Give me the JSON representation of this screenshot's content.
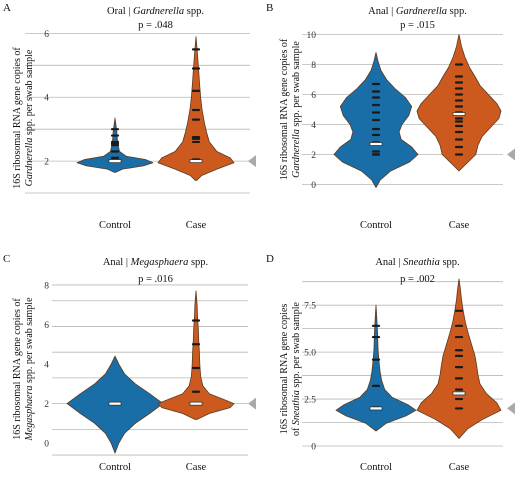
{
  "colors": {
    "control": "#1a6ea8",
    "case": "#cc5a1f",
    "outline": "#5a3a20",
    "marker": "#a9a9a9",
    "points": "#1a1a1a"
  },
  "chart_data": [
    {
      "type": "violin",
      "panel": "A",
      "title_prefix": "Oral | ",
      "title_italic": "Gardnerella",
      "title_suffix": " spp.",
      "pvalue": "p = .048",
      "ylabel_line1": "16S ribosomal RNA gene copies of",
      "ylabel_line2_italic": "Gardnerella",
      "ylabel_line2_rest": " spp. per swab sample",
      "categories": [
        "Control",
        "Case"
      ],
      "ylim": [
        0.5,
        6.2
      ],
      "yticks": [
        "2",
        "4",
        "6"
      ],
      "ytick_values": [
        2,
        4,
        6
      ],
      "gridlines": [
        1,
        2,
        3,
        4,
        5,
        6
      ],
      "reference_marker_y": 2,
      "groups": [
        {
          "name": "Control",
          "y_range": [
            1.65,
            3.35
          ],
          "max_halfwidth": 38,
          "density": [
            [
              1.65,
              0.02
            ],
            [
              1.75,
              0.2
            ],
            [
              1.85,
              0.75
            ],
            [
              1.95,
              1.0
            ],
            [
              2.05,
              0.8
            ],
            [
              2.15,
              0.3
            ],
            [
              2.3,
              0.12
            ],
            [
              2.5,
              0.08
            ],
            [
              2.7,
              0.06
            ],
            [
              2.9,
              0.05
            ],
            [
              3.1,
              0.03
            ],
            [
              3.35,
              0.0
            ]
          ],
          "median": 2.0,
          "points": [
            2.0,
            2.1,
            2.3,
            2.5,
            2.55,
            2.6,
            2.8,
            3.0
          ]
        },
        {
          "name": "Case",
          "y_range": [
            1.4,
            5.9
          ],
          "max_halfwidth": 38,
          "density": [
            [
              1.4,
              0.02
            ],
            [
              1.55,
              0.15
            ],
            [
              1.75,
              0.55
            ],
            [
              1.95,
              1.0
            ],
            [
              2.1,
              0.9
            ],
            [
              2.3,
              0.55
            ],
            [
              2.6,
              0.35
            ],
            [
              2.9,
              0.28
            ],
            [
              3.2,
              0.22
            ],
            [
              3.6,
              0.16
            ],
            [
              4.0,
              0.12
            ],
            [
              4.5,
              0.09
            ],
            [
              5.0,
              0.06
            ],
            [
              5.5,
              0.03
            ],
            [
              5.9,
              0.0
            ]
          ],
          "median": 2.0,
          "points": [
            2.0,
            2.05,
            2.6,
            2.7,
            2.75,
            3.3,
            3.6,
            4.2,
            4.9,
            5.5
          ]
        }
      ]
    },
    {
      "type": "violin",
      "panel": "B",
      "title_prefix": "Anal | ",
      "title_italic": "Gardnerella",
      "title_suffix": " spp.",
      "pvalue": "p = .015",
      "ylabel_line1": "16S ribosomal RNA gene copies of",
      "ylabel_line2_italic": "Gardnerella",
      "ylabel_line2_rest": " spp. per swab sample",
      "categories": [
        "Control",
        "Case"
      ],
      "ylim": [
        -0.5,
        10.5
      ],
      "yticks": [
        "0",
        "2",
        "4",
        "6",
        "8",
        "10"
      ],
      "ytick_values": [
        0,
        2,
        4,
        6,
        8,
        10
      ],
      "gridlines": [
        0,
        2,
        4,
        6,
        8,
        10
      ],
      "reference_marker_y": 2,
      "groups": [
        {
          "name": "Control",
          "y_range": [
            -0.2,
            8.8
          ],
          "max_halfwidth": 42,
          "density": [
            [
              -0.2,
              0.0
            ],
            [
              0.3,
              0.1
            ],
            [
              0.9,
              0.35
            ],
            [
              1.5,
              0.8
            ],
            [
              2.0,
              1.0
            ],
            [
              2.5,
              0.85
            ],
            [
              3.0,
              0.6
            ],
            [
              3.5,
              0.55
            ],
            [
              4.0,
              0.62
            ],
            [
              4.6,
              0.78
            ],
            [
              5.2,
              0.85
            ],
            [
              5.8,
              0.7
            ],
            [
              6.4,
              0.45
            ],
            [
              7.0,
              0.25
            ],
            [
              7.6,
              0.12
            ],
            [
              8.2,
              0.05
            ],
            [
              8.8,
              0.0
            ]
          ],
          "median": 2.7,
          "points": [
            2.0,
            2.0,
            2.2,
            2.8,
            3.3,
            3.7,
            4.3,
            4.8,
            5.3,
            5.8,
            6.2,
            6.7
          ]
        },
        {
          "name": "Case",
          "y_range": [
            0.9,
            10.0
          ],
          "max_halfwidth": 42,
          "density": [
            [
              0.9,
              0.0
            ],
            [
              1.4,
              0.18
            ],
            [
              2.0,
              0.4
            ],
            [
              2.6,
              0.45
            ],
            [
              3.2,
              0.55
            ],
            [
              3.8,
              0.75
            ],
            [
              4.4,
              0.95
            ],
            [
              4.9,
              1.0
            ],
            [
              5.4,
              0.9
            ],
            [
              6.0,
              0.7
            ],
            [
              6.6,
              0.5
            ],
            [
              7.2,
              0.38
            ],
            [
              7.8,
              0.25
            ],
            [
              8.5,
              0.14
            ],
            [
              9.2,
              0.06
            ],
            [
              10.0,
              0.0
            ]
          ],
          "median": 4.7,
          "points": [
            2.0,
            2.5,
            3.0,
            3.5,
            3.9,
            4.2,
            4.4,
            4.8,
            5.2,
            5.6,
            6.0,
            6.4,
            6.8,
            7.2,
            8.0
          ]
        }
      ]
    },
    {
      "type": "violin",
      "panel": "C",
      "title_prefix": "Anal | ",
      "title_italic": "Megasphaera",
      "title_suffix": " spp.",
      "pvalue": "p = .016",
      "ylabel_line1": "16S ribosomal RNA gene copies of",
      "ylabel_line2_italic": "Megasphaera",
      "ylabel_line2_rest": " spp. per swab sample",
      "categories": [
        "Control",
        "Case"
      ],
      "ylim": [
        -0.9,
        8.4
      ],
      "yticks": [
        "0",
        "2",
        "4",
        "6",
        "8"
      ],
      "ytick_values": [
        0,
        2,
        4,
        6,
        8
      ],
      "gridlines": [
        -0.6,
        0.7,
        2,
        3.3,
        4.6,
        5.9,
        7.2,
        8
      ],
      "reference_marker_y": 2,
      "groups": [
        {
          "name": "Control",
          "y_range": [
            -0.5,
            4.4
          ],
          "max_halfwidth": 48,
          "density": [
            [
              -0.5,
              0.0
            ],
            [
              0.0,
              0.08
            ],
            [
              0.5,
              0.2
            ],
            [
              1.0,
              0.42
            ],
            [
              1.5,
              0.72
            ],
            [
              2.0,
              1.0
            ],
            [
              2.5,
              0.72
            ],
            [
              3.0,
              0.42
            ],
            [
              3.5,
              0.2
            ],
            [
              4.0,
              0.08
            ],
            [
              4.4,
              0.0
            ]
          ],
          "median": 2.0,
          "points": [
            2.0,
            2.0
          ]
        },
        {
          "name": "Case",
          "y_range": [
            1.2,
            7.7
          ],
          "max_halfwidth": 38,
          "density": [
            [
              1.2,
              0.02
            ],
            [
              1.5,
              0.35
            ],
            [
              1.8,
              0.9
            ],
            [
              2.0,
              1.0
            ],
            [
              2.2,
              0.75
            ],
            [
              2.5,
              0.35
            ],
            [
              2.9,
              0.18
            ],
            [
              3.4,
              0.12
            ],
            [
              4.0,
              0.1
            ],
            [
              4.6,
              0.09
            ],
            [
              5.2,
              0.07
            ],
            [
              5.8,
              0.06
            ],
            [
              6.4,
              0.04
            ],
            [
              7.0,
              0.03
            ],
            [
              7.7,
              0.0
            ]
          ],
          "median": 2.0,
          "points": [
            2.0,
            2.6,
            3.8,
            5.0,
            6.2
          ]
        }
      ]
    },
    {
      "type": "violin",
      "panel": "D",
      "title_prefix": "Anal | ",
      "title_italic": "Sneathia",
      "title_suffix": " spp.",
      "pvalue": "p = .002",
      "ylabel_line1": "16S ribosomal RNA gene copies",
      "ylabel_line2_prefix": "of ",
      "ylabel_line2_italic": "Sneathia",
      "ylabel_line2_rest": " spp. per swab sample",
      "categories": [
        "Control",
        "Case"
      ],
      "ylim": [
        -0.8,
        9.0
      ],
      "yticks": [
        "0",
        "2.5",
        "5.0",
        "7.5"
      ],
      "ytick_values": [
        0,
        2.5,
        5.0,
        7.5
      ],
      "gridlines": [
        0,
        1.25,
        2.5,
        3.75,
        5.0,
        6.25,
        7.5,
        8.75
      ],
      "reference_marker_y": 2,
      "groups": [
        {
          "name": "Control",
          "y_range": [
            0.8,
            7.5
          ],
          "max_halfwidth": 40,
          "density": [
            [
              0.8,
              0.0
            ],
            [
              1.2,
              0.25
            ],
            [
              1.6,
              0.75
            ],
            [
              1.9,
              1.0
            ],
            [
              2.2,
              0.8
            ],
            [
              2.6,
              0.4
            ],
            [
              3.0,
              0.22
            ],
            [
              3.5,
              0.14
            ],
            [
              4.0,
              0.1
            ],
            [
              4.6,
              0.07
            ],
            [
              5.2,
              0.05
            ],
            [
              6.0,
              0.04
            ],
            [
              6.8,
              0.02
            ],
            [
              7.5,
              0.0
            ]
          ],
          "median": 2.0,
          "points": [
            2.0,
            2.05,
            3.2,
            4.6,
            5.8,
            6.4
          ]
        },
        {
          "name": "Case",
          "y_range": [
            0.4,
            8.9
          ],
          "max_halfwidth": 42,
          "density": [
            [
              0.4,
              0.0
            ],
            [
              0.9,
              0.2
            ],
            [
              1.4,
              0.55
            ],
            [
              1.9,
              1.0
            ],
            [
              2.3,
              0.9
            ],
            [
              2.8,
              0.65
            ],
            [
              3.3,
              0.5
            ],
            [
              3.8,
              0.45
            ],
            [
              4.3,
              0.42
            ],
            [
              4.8,
              0.38
            ],
            [
              5.4,
              0.3
            ],
            [
              6.0,
              0.22
            ],
            [
              6.6,
              0.15
            ],
            [
              7.2,
              0.1
            ],
            [
              7.8,
              0.06
            ],
            [
              8.4,
              0.03
            ],
            [
              8.9,
              0.0
            ]
          ],
          "median": 2.8,
          "points": [
            2.0,
            2.5,
            3.0,
            3.6,
            4.2,
            4.8,
            5.1,
            5.8,
            6.4,
            7.2
          ]
        }
      ]
    }
  ]
}
